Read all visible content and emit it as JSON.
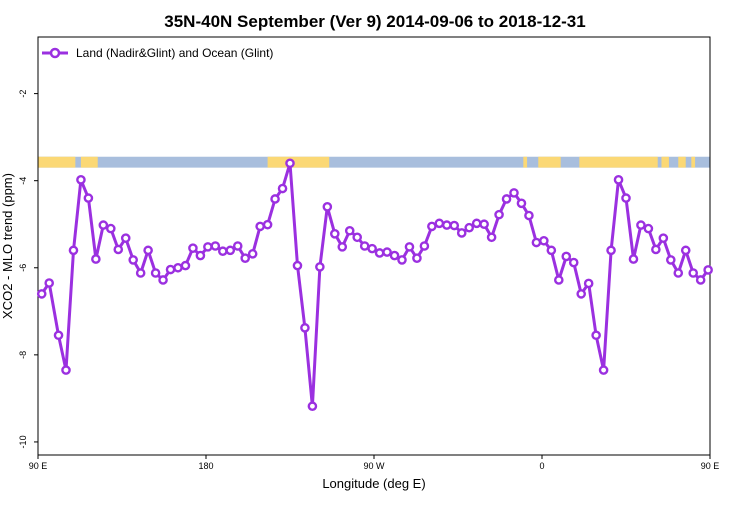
{
  "chart_data": {
    "type": "line",
    "title": "35N-40N September (Ver 9)   2014-09-06 to 2018-12-31",
    "xlabel": "Longitude (deg E)",
    "ylabel": "XCO2 - MLO trend (ppm)",
    "xlim": [
      90,
      450
    ],
    "ylim": [
      -10.3,
      -0.7
    ],
    "x_ticks": [
      {
        "value": 90,
        "label": "90 E"
      },
      {
        "value": 180,
        "label": "180"
      },
      {
        "value": 270,
        "label": "90 W"
      },
      {
        "value": 360,
        "label": "0"
      },
      {
        "value": 450,
        "label": "90 E"
      },
      {
        "value": 540,
        "label": "180"
      }
    ],
    "y_ticks": [
      {
        "value": -2,
        "label": "-2"
      },
      {
        "value": -4,
        "label": "-4"
      },
      {
        "value": -6,
        "label": "-6"
      },
      {
        "value": -8,
        "label": "-8"
      },
      {
        "value": -10,
        "label": "-10"
      }
    ],
    "grid": false,
    "legend_position": "top-left",
    "land_ocean_strip": {
      "y_range": [
        -3.7,
        -3.45
      ],
      "ocean_color": "#a8bedd",
      "land_color": "#fbd875",
      "land_spans": [
        [
          90,
          110
        ],
        [
          113,
          122
        ],
        [
          213,
          246
        ],
        [
          350,
          352
        ],
        [
          358,
          370
        ],
        [
          380,
          422
        ],
        [
          424,
          428
        ],
        [
          433,
          437
        ],
        [
          440,
          442
        ]
      ]
    },
    "series": [
      {
        "name": "Land (Nadir&Glint) and Ocean (Glint)",
        "color": "#9b30e0",
        "x": [
          92,
          96,
          101,
          105,
          109,
          113,
          117,
          121,
          125,
          129,
          133,
          137,
          141,
          145,
          149,
          153,
          157,
          161,
          165,
          169,
          173,
          177,
          181,
          185,
          189,
          193,
          197,
          201,
          205,
          209,
          213,
          217,
          221,
          225,
          229,
          233,
          237,
          241,
          245,
          249,
          253,
          257,
          261,
          265,
          269,
          273,
          277,
          281,
          285,
          289,
          293,
          297,
          301,
          305,
          309,
          313,
          317,
          321,
          325,
          329,
          333,
          337,
          341,
          345,
          349,
          353,
          357,
          361,
          365,
          369,
          373,
          377,
          381,
          385,
          389,
          393,
          397,
          401,
          405,
          409,
          413,
          417,
          421,
          425,
          429,
          433,
          437,
          441,
          445,
          449
        ],
        "y": [
          -6.6,
          -6.35,
          -7.55,
          -8.35,
          -5.6,
          -3.98,
          -4.4,
          -5.8,
          -5.02,
          -5.1,
          -5.58,
          -5.32,
          -5.82,
          -6.12,
          -5.6,
          -6.12,
          -6.28,
          -6.04,
          -6.0,
          -5.95,
          -5.55,
          -5.72,
          -5.52,
          -5.5,
          -5.62,
          -5.6,
          -5.5,
          -5.78,
          -5.68,
          -5.05,
          -5.01,
          -4.42,
          -4.18,
          -3.6,
          -5.95,
          -7.38,
          -9.18,
          -5.98,
          -4.6,
          -5.22,
          -5.52,
          -5.15,
          -5.3,
          -5.5,
          -5.56,
          -5.66,
          -5.64,
          -5.72,
          -5.82,
          -5.52,
          -5.78,
          -5.5,
          -5.05,
          -4.98,
          -5.02,
          -5.03,
          -5.2,
          -5.08,
          -4.98,
          -5.0,
          -5.3,
          -4.78,
          -4.42,
          -4.28,
          -4.52,
          -4.8,
          -5.42,
          -5.38,
          -5.6,
          -6.28,
          -5.74,
          -5.88,
          -6.6,
          -6.36,
          -7.55,
          -8.35,
          -5.6,
          -3.98,
          -4.4,
          -5.8,
          -5.02,
          -5.1,
          -5.58,
          -5.32,
          -5.82,
          -6.12,
          -5.6,
          -6.12,
          -6.28,
          -6.05
        ]
      }
    ]
  }
}
